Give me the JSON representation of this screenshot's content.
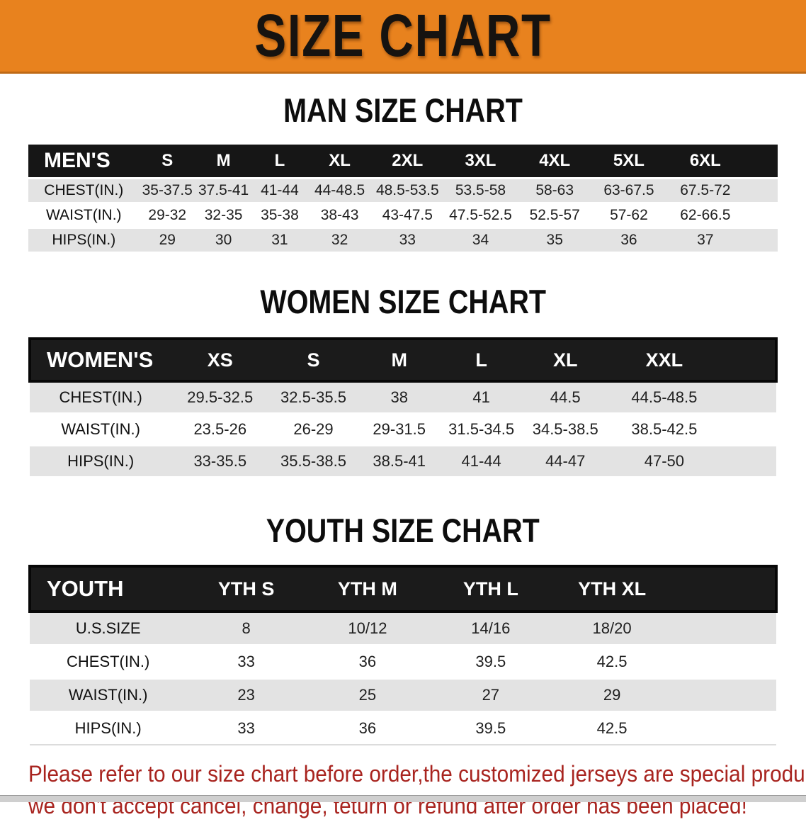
{
  "banner": {
    "title": "SIZE CHART",
    "bg_color": "#e8821e"
  },
  "sections": {
    "men": {
      "title": "MAN SIZE CHART"
    },
    "women": {
      "title": "WOMEN SIZE CHART"
    },
    "youth": {
      "title": "YOUTH SIZE CHART"
    }
  },
  "tables": {
    "men": {
      "header_label": "MEN'S",
      "columns": [
        "S",
        "M",
        "L",
        "XL",
        "2XL",
        "3XL",
        "4XL",
        "5XL",
        "6XL"
      ],
      "rows": [
        {
          "label": "CHEST(IN.)",
          "values": [
            "35-37.5",
            "37.5-41",
            "41-44",
            "44-48.5",
            "48.5-53.5",
            "53.5-58",
            "58-63",
            "63-67.5",
            "67.5-72"
          ]
        },
        {
          "label": "WAIST(IN.)",
          "values": [
            "29-32",
            "32-35",
            "35-38",
            "38-43",
            "43-47.5",
            "47.5-52.5",
            "52.5-57",
            "57-62",
            "62-66.5"
          ]
        },
        {
          "label": "HIPS(IN.)",
          "values": [
            "29",
            "30",
            "31",
            "32",
            "33",
            "34",
            "35",
            "36",
            "37"
          ]
        }
      ]
    },
    "women": {
      "header_label": "WOMEN'S",
      "columns": [
        "XS",
        "S",
        "M",
        "L",
        "XL",
        "XXL"
      ],
      "rows": [
        {
          "label": "CHEST(IN.)",
          "values": [
            "29.5-32.5",
            "32.5-35.5",
            "38",
            "41",
            "44.5",
            "44.5-48.5"
          ]
        },
        {
          "label": "WAIST(IN.)",
          "values": [
            "23.5-26",
            "26-29",
            "29-31.5",
            "31.5-34.5",
            "34.5-38.5",
            "38.5-42.5"
          ]
        },
        {
          "label": "HIPS(IN.)",
          "values": [
            "33-35.5",
            "35.5-38.5",
            "38.5-41",
            "41-44",
            "44-47",
            "47-50"
          ]
        }
      ]
    },
    "youth": {
      "header_label": "YOUTH",
      "columns": [
        "YTH S",
        "YTH M",
        "YTH L",
        "YTH XL"
      ],
      "rows": [
        {
          "label": "U.S.SIZE",
          "values": [
            "8",
            "10/12",
            "14/16",
            "18/20"
          ]
        },
        {
          "label": "CHEST(IN.)",
          "values": [
            "33",
            "36",
            "39.5",
            "42.5"
          ]
        },
        {
          "label": "WAIST(IN.)",
          "values": [
            "23",
            "25",
            "27",
            "29"
          ]
        },
        {
          "label": "HIPS(IN.)",
          "values": [
            "33",
            "36",
            "39.5",
            "42.5"
          ]
        }
      ]
    }
  },
  "disclaimer": {
    "line1": "Please refer to our size chart before order,the customized jerseys are special products,",
    "line2": "we don't accept cancel, change, teturn or refund after order has been placed!",
    "text_color": "#a8241f"
  },
  "colors": {
    "header_bar_bg": "#161616",
    "row_shade": "#e3e3e3"
  }
}
